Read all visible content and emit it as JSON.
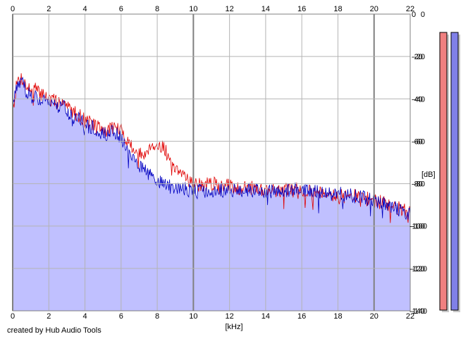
{
  "credit": "created by Hub Audio Tools",
  "chart_data": {
    "type": "line",
    "xlabel": "[kHz]",
    "ylabel": "[dB]",
    "xlim": [
      0,
      22
    ],
    "ylim": [
      -140,
      0
    ],
    "x_ticks": [
      "0",
      "2",
      "4",
      "6",
      "8",
      "10",
      "12",
      "14",
      "16",
      "18",
      "20",
      "22"
    ],
    "y_ticks_left": [
      "0",
      "-20",
      "-40",
      "-60",
      "-80",
      "-100",
      "-120",
      "-140"
    ],
    "y_ticks_right": [
      "0",
      "-20",
      "-40",
      "-60",
      "-80",
      "-100",
      "-120",
      "-140"
    ],
    "grid": true,
    "x": [
      0,
      0.25,
      0.5,
      0.75,
      1,
      1.25,
      1.5,
      1.75,
      2,
      2.25,
      2.5,
      2.75,
      3,
      3.25,
      3.5,
      3.75,
      4,
      4.25,
      4.5,
      4.75,
      5,
      5.25,
      5.5,
      5.75,
      6,
      6.25,
      6.5,
      6.75,
      7,
      7.25,
      7.5,
      7.75,
      8,
      8.25,
      8.5,
      8.75,
      9,
      9.25,
      9.5,
      9.75,
      10,
      10.5,
      11,
      11.5,
      12,
      12.5,
      13,
      13.5,
      14,
      14.5,
      15,
      15.5,
      16,
      16.5,
      17,
      17.5,
      18,
      18.5,
      19,
      19.5,
      20,
      20.5,
      21,
      21.5,
      22
    ],
    "series": [
      {
        "color": "#e00000",
        "fill": null,
        "values": [
          -45,
          -32,
          -30,
          -34,
          -36,
          -35,
          -38,
          -37,
          -40,
          -41,
          -42,
          -40,
          -44,
          -45,
          -47,
          -48,
          -50,
          -51,
          -52,
          -53,
          -55,
          -55,
          -53,
          -54,
          -55,
          -58,
          -62,
          -64,
          -66,
          -67,
          -63,
          -61,
          -63,
          -62,
          -65,
          -72,
          -74,
          -76,
          -75,
          -78,
          -80,
          -81,
          -80,
          -81,
          -81,
          -82,
          -82,
          -82,
          -83,
          -83,
          -83,
          -83,
          -83,
          -83,
          -84,
          -84,
          -86,
          -86,
          -86,
          -87,
          -88,
          -89,
          -91,
          -92,
          -94
        ]
      },
      {
        "color": "#0000c0",
        "fill": "#c0c0ff",
        "values": [
          -44,
          -33,
          -32,
          -36,
          -39,
          -38,
          -41,
          -39,
          -42,
          -43,
          -45,
          -43,
          -46,
          -48,
          -49,
          -50,
          -52,
          -53,
          -54,
          -55,
          -56,
          -57,
          -56,
          -57,
          -58,
          -62,
          -66,
          -69,
          -71,
          -73,
          -75,
          -77,
          -79,
          -80,
          -80,
          -82,
          -82,
          -83,
          -82,
          -83,
          -83,
          -83,
          -83,
          -83,
          -83,
          -83,
          -83,
          -83,
          -84,
          -83,
          -83,
          -83,
          -83,
          -83,
          -84,
          -84,
          -85,
          -85,
          -86,
          -87,
          -88,
          -89,
          -91,
          -93,
          -95
        ]
      }
    ]
  },
  "meters": [
    {
      "color": "#f08080",
      "level": 1.0
    },
    {
      "color": "#8080e8",
      "level": 1.0
    }
  ]
}
